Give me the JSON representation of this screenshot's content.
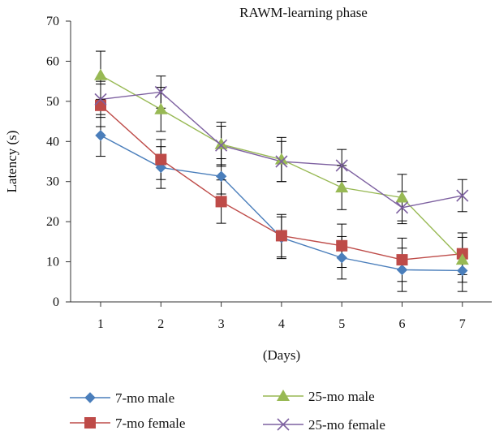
{
  "chart_data": {
    "type": "line",
    "title": "RAWM-learning phase",
    "xlabel": "(Days)",
    "ylabel": "Latency (s)",
    "categories": [
      "1",
      "2",
      "3",
      "4",
      "5",
      "6",
      "7"
    ],
    "ylim": [
      0,
      70
    ],
    "yticks": [
      "0",
      "10",
      "20",
      "30",
      "40",
      "50",
      "60",
      "70"
    ],
    "grid": false,
    "legend_position": "bottom",
    "series": [
      {
        "name": "7-mo male",
        "color": "#4a7ebb",
        "marker": "diamond",
        "values": [
          41.5,
          33.5,
          31.3,
          16.0,
          11.0,
          8.0,
          7.8
        ],
        "error": [
          5.2,
          5.2,
          4.4,
          5.2,
          5.3,
          5.4,
          5.2
        ]
      },
      {
        "name": "7-mo female",
        "color": "#be4b48",
        "marker": "square",
        "values": [
          49.0,
          35.5,
          25.0,
          16.5,
          14.0,
          10.5,
          12.0
        ],
        "error": [
          5.3,
          5.0,
          5.4,
          5.3,
          5.4,
          5.4,
          5.2
        ]
      },
      {
        "name": "25-mo male",
        "color": "#98b954",
        "marker": "triangle",
        "values": [
          56.5,
          48.0,
          39.3,
          35.5,
          28.5,
          26.0,
          10.5
        ],
        "error": [
          6.0,
          5.5,
          5.5,
          5.5,
          5.5,
          5.8,
          5.6
        ]
      },
      {
        "name": "25-mo female",
        "color": "#7d60a0",
        "marker": "x",
        "values": [
          50.5,
          52.3,
          39.0,
          35.0,
          34.0,
          23.5,
          26.5
        ],
        "error": [
          4.5,
          4.0,
          4.8,
          5.0,
          4.0,
          4.0,
          4.0
        ]
      }
    ]
  }
}
